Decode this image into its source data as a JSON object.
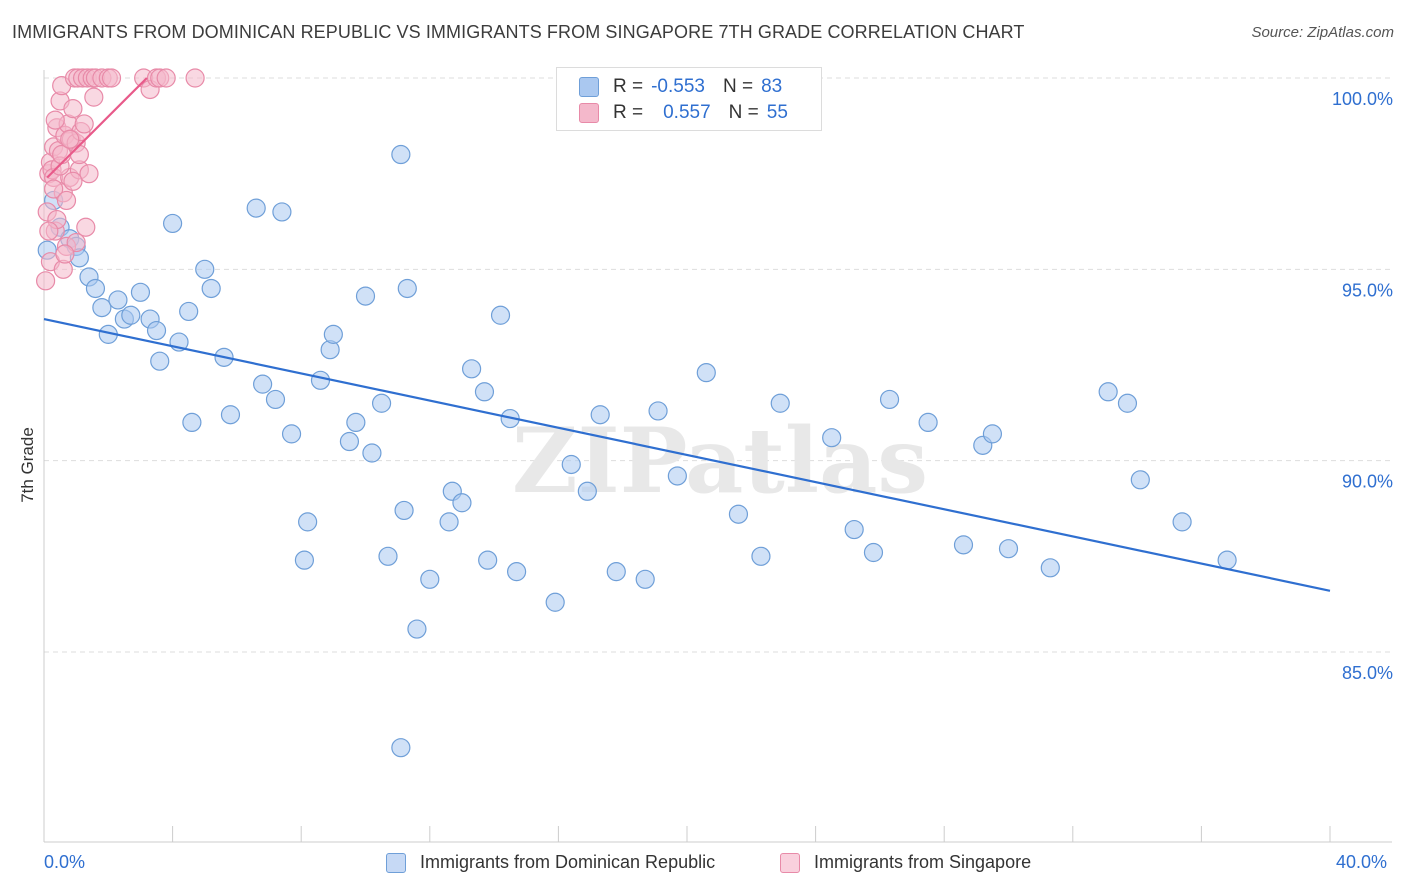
{
  "title": "IMMIGRANTS FROM DOMINICAN REPUBLIC VS IMMIGRANTS FROM SINGAPORE 7TH GRADE CORRELATION CHART",
  "source": "Source: ZipAtlas.com",
  "watermark": "ZIPatlas",
  "legend": {
    "series1": {
      "r_label": "R =",
      "r_value": "-0.553",
      "n_label": "N =",
      "n_value": "83"
    },
    "series2": {
      "r_label": "R =",
      "r_value": "0.557",
      "n_label": "N =",
      "n_value": "55"
    }
  },
  "colors": {
    "blue_fill": "#aac8f0",
    "blue_stroke": "#6f9fd8",
    "blue_line": "#2f6fd0",
    "pink_fill": "#f4b8cb",
    "pink_stroke": "#e88aa8",
    "pink_line": "#e85a8a",
    "axis_text": "#2f6fd0",
    "grid": "#dddddd"
  },
  "chart_data": {
    "type": "scatter",
    "title": "IMMIGRANTS FROM DOMINICAN REPUBLIC VS IMMIGRANTS FROM SINGAPORE 7TH GRADE CORRELATION CHART",
    "xlabel": "",
    "ylabel": "7th Grade",
    "xlim": [
      0,
      40
    ],
    "ylim": [
      80.5,
      100.5
    ],
    "x_tick_labels": [
      "0.0%",
      "40.0%"
    ],
    "y_ticks": [
      85,
      90,
      95,
      100
    ],
    "y_tick_labels": [
      "85.0%",
      "90.0%",
      "95.0%",
      "100.0%"
    ],
    "series": [
      {
        "name": "Immigrants from Dominican Republic",
        "color": "blue",
        "trend": {
          "x": [
            0,
            40
          ],
          "y": [
            93.7,
            86.6
          ]
        },
        "points": [
          [
            0.1,
            95.5
          ],
          [
            0.3,
            96.8
          ],
          [
            0.5,
            96.1
          ],
          [
            0.8,
            95.8
          ],
          [
            1.0,
            95.6
          ],
          [
            1.1,
            95.3
          ],
          [
            1.4,
            94.8
          ],
          [
            1.6,
            94.5
          ],
          [
            1.8,
            94.0
          ],
          [
            2.0,
            93.3
          ],
          [
            2.3,
            94.2
          ],
          [
            2.5,
            93.7
          ],
          [
            2.7,
            93.8
          ],
          [
            3.0,
            94.4
          ],
          [
            3.3,
            93.7
          ],
          [
            3.5,
            93.4
          ],
          [
            3.6,
            92.6
          ],
          [
            4.0,
            96.2
          ],
          [
            4.2,
            93.1
          ],
          [
            4.5,
            93.9
          ],
          [
            4.6,
            91.0
          ],
          [
            5.0,
            95.0
          ],
          [
            5.2,
            94.5
          ],
          [
            5.6,
            92.7
          ],
          [
            5.8,
            91.2
          ],
          [
            6.6,
            96.6
          ],
          [
            6.8,
            92.0
          ],
          [
            7.2,
            91.6
          ],
          [
            7.4,
            96.5
          ],
          [
            7.7,
            90.7
          ],
          [
            8.2,
            88.4
          ],
          [
            8.1,
            87.4
          ],
          [
            8.6,
            92.1
          ],
          [
            8.9,
            92.9
          ],
          [
            9.0,
            93.3
          ],
          [
            9.5,
            90.5
          ],
          [
            9.7,
            91.0
          ],
          [
            10.0,
            94.3
          ],
          [
            10.2,
            90.2
          ],
          [
            10.5,
            91.5
          ],
          [
            10.7,
            87.5
          ],
          [
            11.1,
            98.0
          ],
          [
            11.2,
            88.7
          ],
          [
            11.3,
            94.5
          ],
          [
            11.6,
            85.6
          ],
          [
            12.0,
            86.9
          ],
          [
            12.6,
            88.4
          ],
          [
            12.7,
            89.2
          ],
          [
            13.0,
            88.9
          ],
          [
            13.3,
            92.4
          ],
          [
            13.7,
            91.8
          ],
          [
            13.8,
            87.4
          ],
          [
            14.2,
            93.8
          ],
          [
            14.5,
            91.1
          ],
          [
            14.7,
            87.1
          ],
          [
            15.9,
            86.3
          ],
          [
            16.4,
            89.9
          ],
          [
            16.9,
            89.2
          ],
          [
            17.3,
            91.2
          ],
          [
            17.8,
            87.1
          ],
          [
            18.7,
            86.9
          ],
          [
            19.1,
            91.3
          ],
          [
            19.7,
            89.6
          ],
          [
            20.6,
            92.3
          ],
          [
            21.6,
            88.6
          ],
          [
            22.3,
            87.5
          ],
          [
            22.9,
            91.5
          ],
          [
            24.5,
            90.6
          ],
          [
            25.2,
            88.2
          ],
          [
            25.8,
            87.6
          ],
          [
            26.3,
            91.6
          ],
          [
            27.5,
            91.0
          ],
          [
            28.6,
            87.8
          ],
          [
            29.2,
            90.4
          ],
          [
            29.5,
            90.7
          ],
          [
            30.0,
            87.7
          ],
          [
            31.3,
            87.2
          ],
          [
            33.1,
            91.8
          ],
          [
            33.7,
            91.5
          ],
          [
            34.1,
            89.5
          ],
          [
            35.4,
            88.4
          ],
          [
            36.8,
            87.4
          ],
          [
            11.1,
            82.5
          ]
        ]
      },
      {
        "name": "Immigrants from Singapore",
        "color": "pink",
        "trend": {
          "x": [
            0.1,
            3.2
          ],
          "y": [
            97.4,
            100.0
          ]
        },
        "points": [
          [
            0.05,
            94.7
          ],
          [
            0.1,
            96.5
          ],
          [
            0.15,
            97.5
          ],
          [
            0.2,
            97.8
          ],
          [
            0.25,
            97.6
          ],
          [
            0.3,
            98.2
          ],
          [
            0.3,
            97.4
          ],
          [
            0.35,
            96.0
          ],
          [
            0.4,
            98.7
          ],
          [
            0.45,
            98.1
          ],
          [
            0.5,
            99.4
          ],
          [
            0.55,
            99.8
          ],
          [
            0.6,
            97.0
          ],
          [
            0.65,
            98.5
          ],
          [
            0.7,
            95.6
          ],
          [
            0.75,
            98.8
          ],
          [
            0.8,
            97.4
          ],
          [
            0.85,
            98.4
          ],
          [
            0.9,
            99.2
          ],
          [
            0.95,
            100.0
          ],
          [
            1.0,
            98.3
          ],
          [
            1.05,
            100.0
          ],
          [
            1.1,
            97.6
          ],
          [
            1.15,
            98.6
          ],
          [
            1.2,
            100.0
          ],
          [
            1.25,
            98.8
          ],
          [
            1.3,
            96.1
          ],
          [
            1.35,
            100.0
          ],
          [
            1.4,
            97.5
          ],
          [
            1.5,
            100.0
          ],
          [
            1.55,
            99.5
          ],
          [
            1.6,
            100.0
          ],
          [
            1.8,
            100.0
          ],
          [
            2.0,
            100.0
          ],
          [
            2.1,
            100.0
          ],
          [
            3.1,
            100.0
          ],
          [
            3.3,
            99.7
          ],
          [
            3.5,
            100.0
          ],
          [
            3.6,
            100.0
          ],
          [
            3.8,
            100.0
          ],
          [
            4.7,
            100.0
          ],
          [
            0.2,
            95.2
          ],
          [
            0.4,
            96.3
          ],
          [
            0.6,
            95.0
          ],
          [
            0.3,
            97.1
          ],
          [
            0.5,
            97.7
          ],
          [
            0.7,
            96.8
          ],
          [
            0.15,
            96.0
          ],
          [
            0.9,
            97.3
          ],
          [
            1.1,
            98.0
          ],
          [
            0.35,
            98.9
          ],
          [
            0.55,
            98.0
          ],
          [
            0.8,
            98.4
          ],
          [
            1.0,
            95.7
          ],
          [
            0.65,
            95.4
          ]
        ]
      }
    ]
  },
  "bottom_legend": {
    "item1": "Immigrants from Dominican Republic",
    "item2": "Immigrants from Singapore"
  }
}
